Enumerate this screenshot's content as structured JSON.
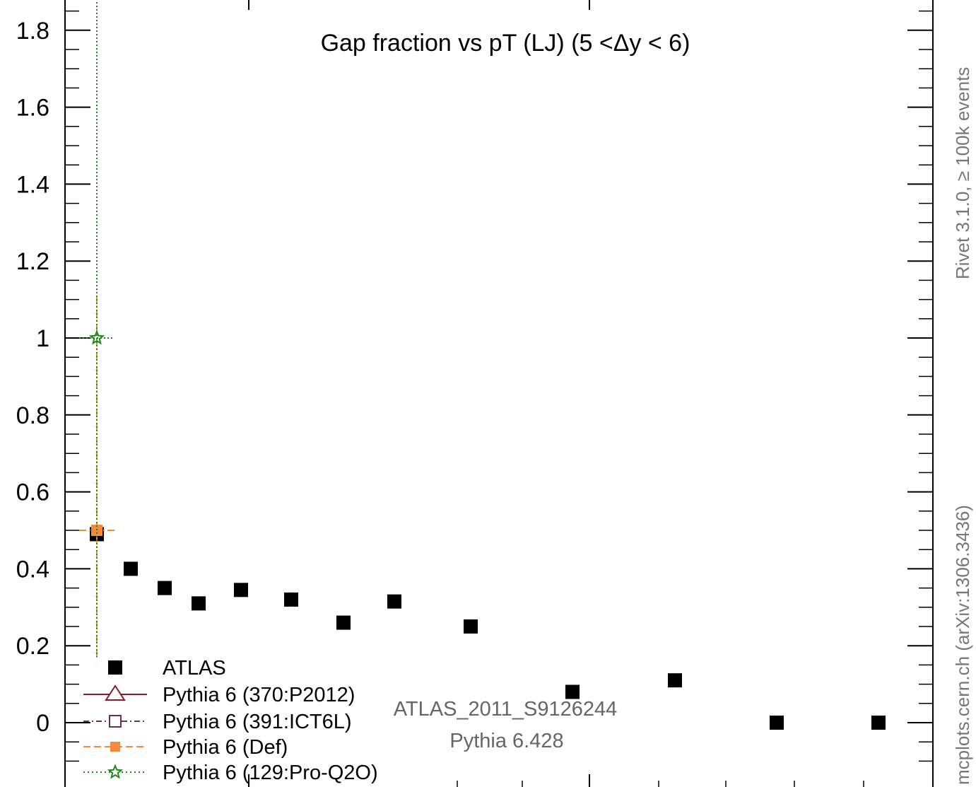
{
  "chart_data": {
    "type": "scatter",
    "title": "Gap fraction vs pT (LJ) (5 <Δy < 6)",
    "xlabel": "",
    "ylabel": "",
    "ylim": [
      -0.15,
      1.9
    ],
    "y_ticks": [
      0,
      0.2,
      0.4,
      0.6,
      0.8,
      1,
      1.2,
      1.4,
      1.6,
      1.8
    ],
    "y_tick_labels": [
      "0",
      "0.2",
      "0.4",
      "0.6",
      "0.8",
      "1",
      "1.2",
      "1.4",
      "1.6",
      "1.8"
    ],
    "series": [
      {
        "name": "ATLAS",
        "color": "#000000",
        "marker": "square-filled",
        "points": [
          {
            "x": 1,
            "y": 0.49
          },
          {
            "x": 2,
            "y": 0.4
          },
          {
            "x": 3,
            "y": 0.35
          },
          {
            "x": 4,
            "y": 0.31
          },
          {
            "x": 5,
            "y": 0.345
          },
          {
            "x": 6,
            "y": 0.32
          },
          {
            "x": 7,
            "y": 0.26
          },
          {
            "x": 8,
            "y": 0.315
          },
          {
            "x": 9,
            "y": 0.25
          },
          {
            "x": 10,
            "y": 0.08
          },
          {
            "x": 11,
            "y": 0.11
          },
          {
            "x": 12,
            "y": 0.0
          },
          {
            "x": 13,
            "y": 0.0
          }
        ]
      },
      {
        "name": "Pythia 6 (370:P2012)",
        "color": "#8b1a2b",
        "marker": "triangle-open",
        "line": "solid",
        "points": []
      },
      {
        "name": "Pythia 6 (391:ICT6L)",
        "color": "#6b3050",
        "marker": "square-open",
        "line": "dashdot",
        "points": []
      },
      {
        "name": "Pythia 6 (Def)",
        "color": "#f58b3a",
        "marker": "square-filled",
        "line": "dashed",
        "points": [
          {
            "x": 1,
            "y": 0.5,
            "yerr_low": 0.33,
            "yerr_high": 0.61
          }
        ]
      },
      {
        "name": "Pythia 6 (129:Pro-Q2O)",
        "color": "#1a8a1a",
        "marker": "star-open",
        "line": "dotted",
        "points": [
          {
            "x": 1,
            "y": 1.0,
            "yerr_low": 0.83,
            "yerr_high": 0.98
          }
        ]
      }
    ],
    "annotations": {
      "analysis_id": "ATLAS_2011_S9126244",
      "generator": "Pythia 6.428",
      "side_top": "Rivet 3.1.0, ≥ 100k events",
      "side_bottom": "mcplots.cern.ch (arXiv:1306.3436)"
    },
    "legend_position": "bottom-left"
  }
}
